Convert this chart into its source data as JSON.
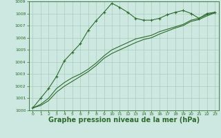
{
  "bg_color": "#cce8e0",
  "grid_color": "#aaccbb",
  "line_color": "#2d6a2d",
  "xlabel": "Graphe pression niveau de la mer (hPa)",
  "xlabel_fontsize": 7,
  "xlim": [
    -0.5,
    23.5
  ],
  "ylim": [
    1000,
    1009
  ],
  "xticks": [
    0,
    1,
    2,
    3,
    4,
    5,
    6,
    7,
    8,
    9,
    10,
    11,
    12,
    13,
    14,
    15,
    16,
    17,
    18,
    19,
    20,
    21,
    22,
    23
  ],
  "yticks": [
    1000,
    1001,
    1002,
    1003,
    1004,
    1005,
    1006,
    1007,
    1008,
    1009
  ],
  "series1": {
    "x": [
      0,
      1,
      2,
      3,
      4,
      5,
      6,
      7,
      8,
      9,
      10,
      11,
      12,
      13,
      14,
      15,
      16,
      17,
      18,
      19,
      20,
      21,
      22,
      23
    ],
    "y": [
      1000.2,
      1001.0,
      1001.8,
      1002.8,
      1004.1,
      1004.8,
      1005.5,
      1006.6,
      1007.4,
      1008.1,
      1008.85,
      1008.5,
      1008.1,
      1007.6,
      1007.45,
      1007.45,
      1007.6,
      1007.9,
      1008.1,
      1008.25,
      1008.0,
      1007.6,
      1008.0,
      1008.1
    ]
  },
  "series2": {
    "x": [
      0,
      1,
      2,
      3,
      4,
      5,
      6,
      7,
      8,
      9,
      10,
      11,
      12,
      13,
      14,
      15,
      16,
      17,
      18,
      19,
      20,
      21,
      22,
      23
    ],
    "y": [
      1000.2,
      1000.5,
      1001.0,
      1001.8,
      1002.3,
      1002.7,
      1003.0,
      1003.4,
      1003.9,
      1004.5,
      1005.0,
      1005.3,
      1005.6,
      1005.9,
      1006.05,
      1006.2,
      1006.5,
      1006.7,
      1006.9,
      1007.1,
      1007.45,
      1007.6,
      1007.9,
      1008.1
    ]
  },
  "series3": {
    "x": [
      0,
      1,
      2,
      3,
      4,
      5,
      6,
      7,
      8,
      9,
      10,
      11,
      12,
      13,
      14,
      15,
      16,
      17,
      18,
      19,
      20,
      21,
      22,
      23
    ],
    "y": [
      1000.2,
      1000.4,
      1000.8,
      1001.5,
      1002.0,
      1002.4,
      1002.8,
      1003.2,
      1003.7,
      1004.3,
      1004.7,
      1005.0,
      1005.3,
      1005.6,
      1005.85,
      1006.0,
      1006.3,
      1006.55,
      1006.8,
      1007.0,
      1007.35,
      1007.5,
      1007.8,
      1008.05
    ]
  }
}
